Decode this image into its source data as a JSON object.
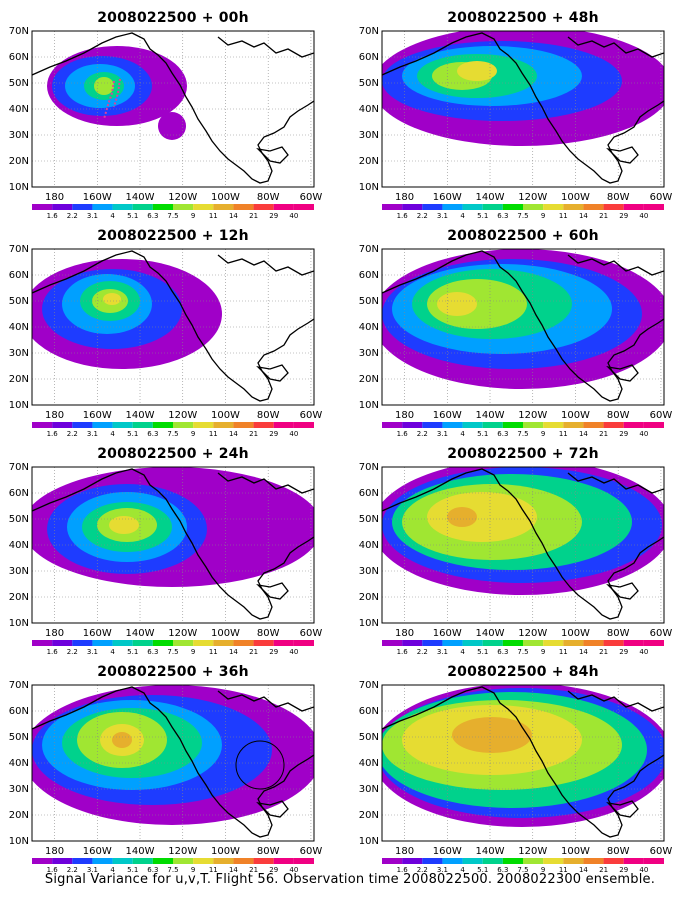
{
  "caption": "Signal Variance for u,v,T. Flight 56. Observation time 2008022500. 2008022300 ensemble.",
  "panels": [
    {
      "title": "2008022500 + 00h"
    },
    {
      "title": "2008022500 + 48h"
    },
    {
      "title": "2008022500 + 12h"
    },
    {
      "title": "2008022500 + 60h"
    },
    {
      "title": "2008022500 + 24h"
    },
    {
      "title": "2008022500 + 72h"
    },
    {
      "title": "2008022500 + 36h"
    },
    {
      "title": "2008022500 + 84h"
    }
  ],
  "lat_labels": [
    "70N",
    "60N",
    "50N",
    "40N",
    "30N",
    "20N",
    "10N"
  ],
  "lon_labels": [
    "180",
    "160W",
    "140W",
    "120W",
    "100W",
    "80W",
    "60W"
  ],
  "colorbar": {
    "labels": [
      "1.6",
      "2.2",
      "3.1",
      "4",
      "5.1",
      "6.3",
      "7.5",
      "9",
      "11",
      "14",
      "21",
      "29",
      "40"
    ],
    "colors": [
      "#a000c8",
      "#6e00dc",
      "#1e3cff",
      "#00a0ff",
      "#00c8c8",
      "#00d28c",
      "#00dc00",
      "#a0e632",
      "#e6dc32",
      "#e6af2d",
      "#f08228",
      "#fa3c3c",
      "#f00082"
    ]
  },
  "fill_colors": [
    "#a000c8",
    "#1e3cff",
    "#00a0ff",
    "#00d28c",
    "#a0e632",
    "#e6dc32",
    "#e6af2d"
  ],
  "flight_track_color": "#e0409a"
}
